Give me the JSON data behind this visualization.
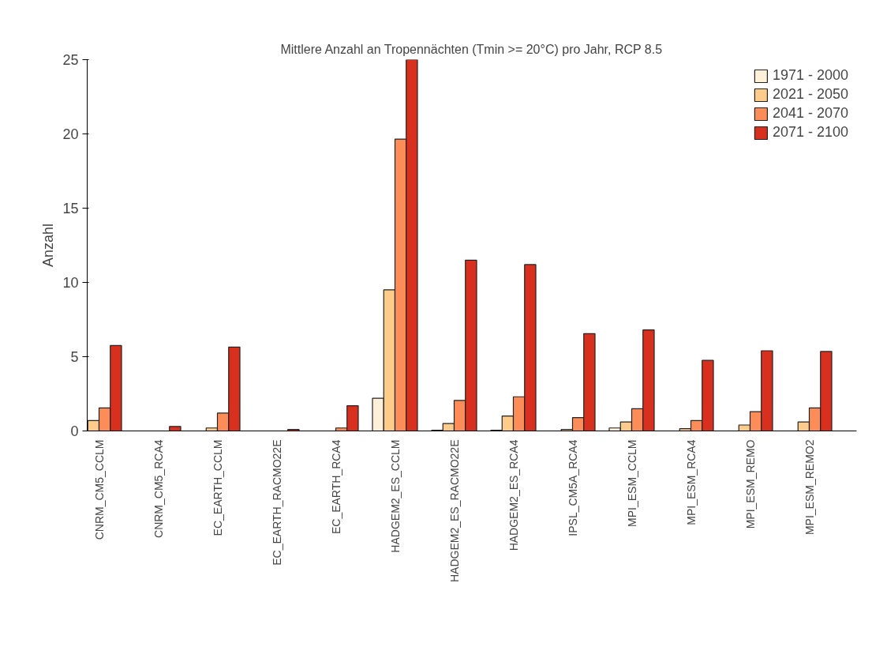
{
  "chart_data": {
    "type": "bar",
    "title": "Mittlere Anzahl an Tropennächten (Tmin >= 20°C) pro Jahr, RCP 8.5",
    "ylabel": "Anzahl",
    "categories": [
      "CNRM_CM5_CCLM",
      "CNRM_CM5_RCA4",
      "EC_EARTH_CCLM",
      "EC_EARTH_RACMO22E",
      "EC_EARTH_RCA4",
      "HADGEM2_ES_CCLM",
      "HADGEM2_ES_RACMO22E",
      "HADGEM2_ES_RCA4",
      "IPSL_CM5A_RCA4",
      "MPI_ESM_CCLM",
      "MPI_ESM_RCA4",
      "MPI_ESM_REMO",
      "MPI_ESM_REMO2"
    ],
    "series": [
      {
        "name": "1971 - 2000",
        "color": "#fef0d9",
        "values": [
          null,
          null,
          null,
          null,
          null,
          2.2,
          0.05,
          0.05,
          null,
          0.2,
          null,
          null,
          null
        ]
      },
      {
        "name": "2021 - 2050",
        "color": "#fdcc8a",
        "values": [
          0.7,
          null,
          0.2,
          null,
          null,
          9.5,
          0.5,
          1.0,
          0.1,
          0.6,
          0.15,
          0.4,
          0.6
        ]
      },
      {
        "name": "2041 - 2070",
        "color": "#fc8d59",
        "values": [
          1.55,
          null,
          1.2,
          null,
          0.2,
          19.65,
          2.05,
          2.3,
          0.9,
          1.5,
          0.7,
          1.3,
          1.55
        ]
      },
      {
        "name": "2071 - 2100",
        "color": "#d7301f",
        "values": [
          5.75,
          0.3,
          5.65,
          0.1,
          1.7,
          25,
          11.5,
          11.2,
          6.55,
          6.8,
          4.75,
          5.4,
          5.35
        ]
      }
    ],
    "ylim": [
      0,
      25
    ],
    "yticks": [
      0,
      5,
      10,
      15,
      20,
      25
    ],
    "grid": false,
    "legend": "top right"
  }
}
